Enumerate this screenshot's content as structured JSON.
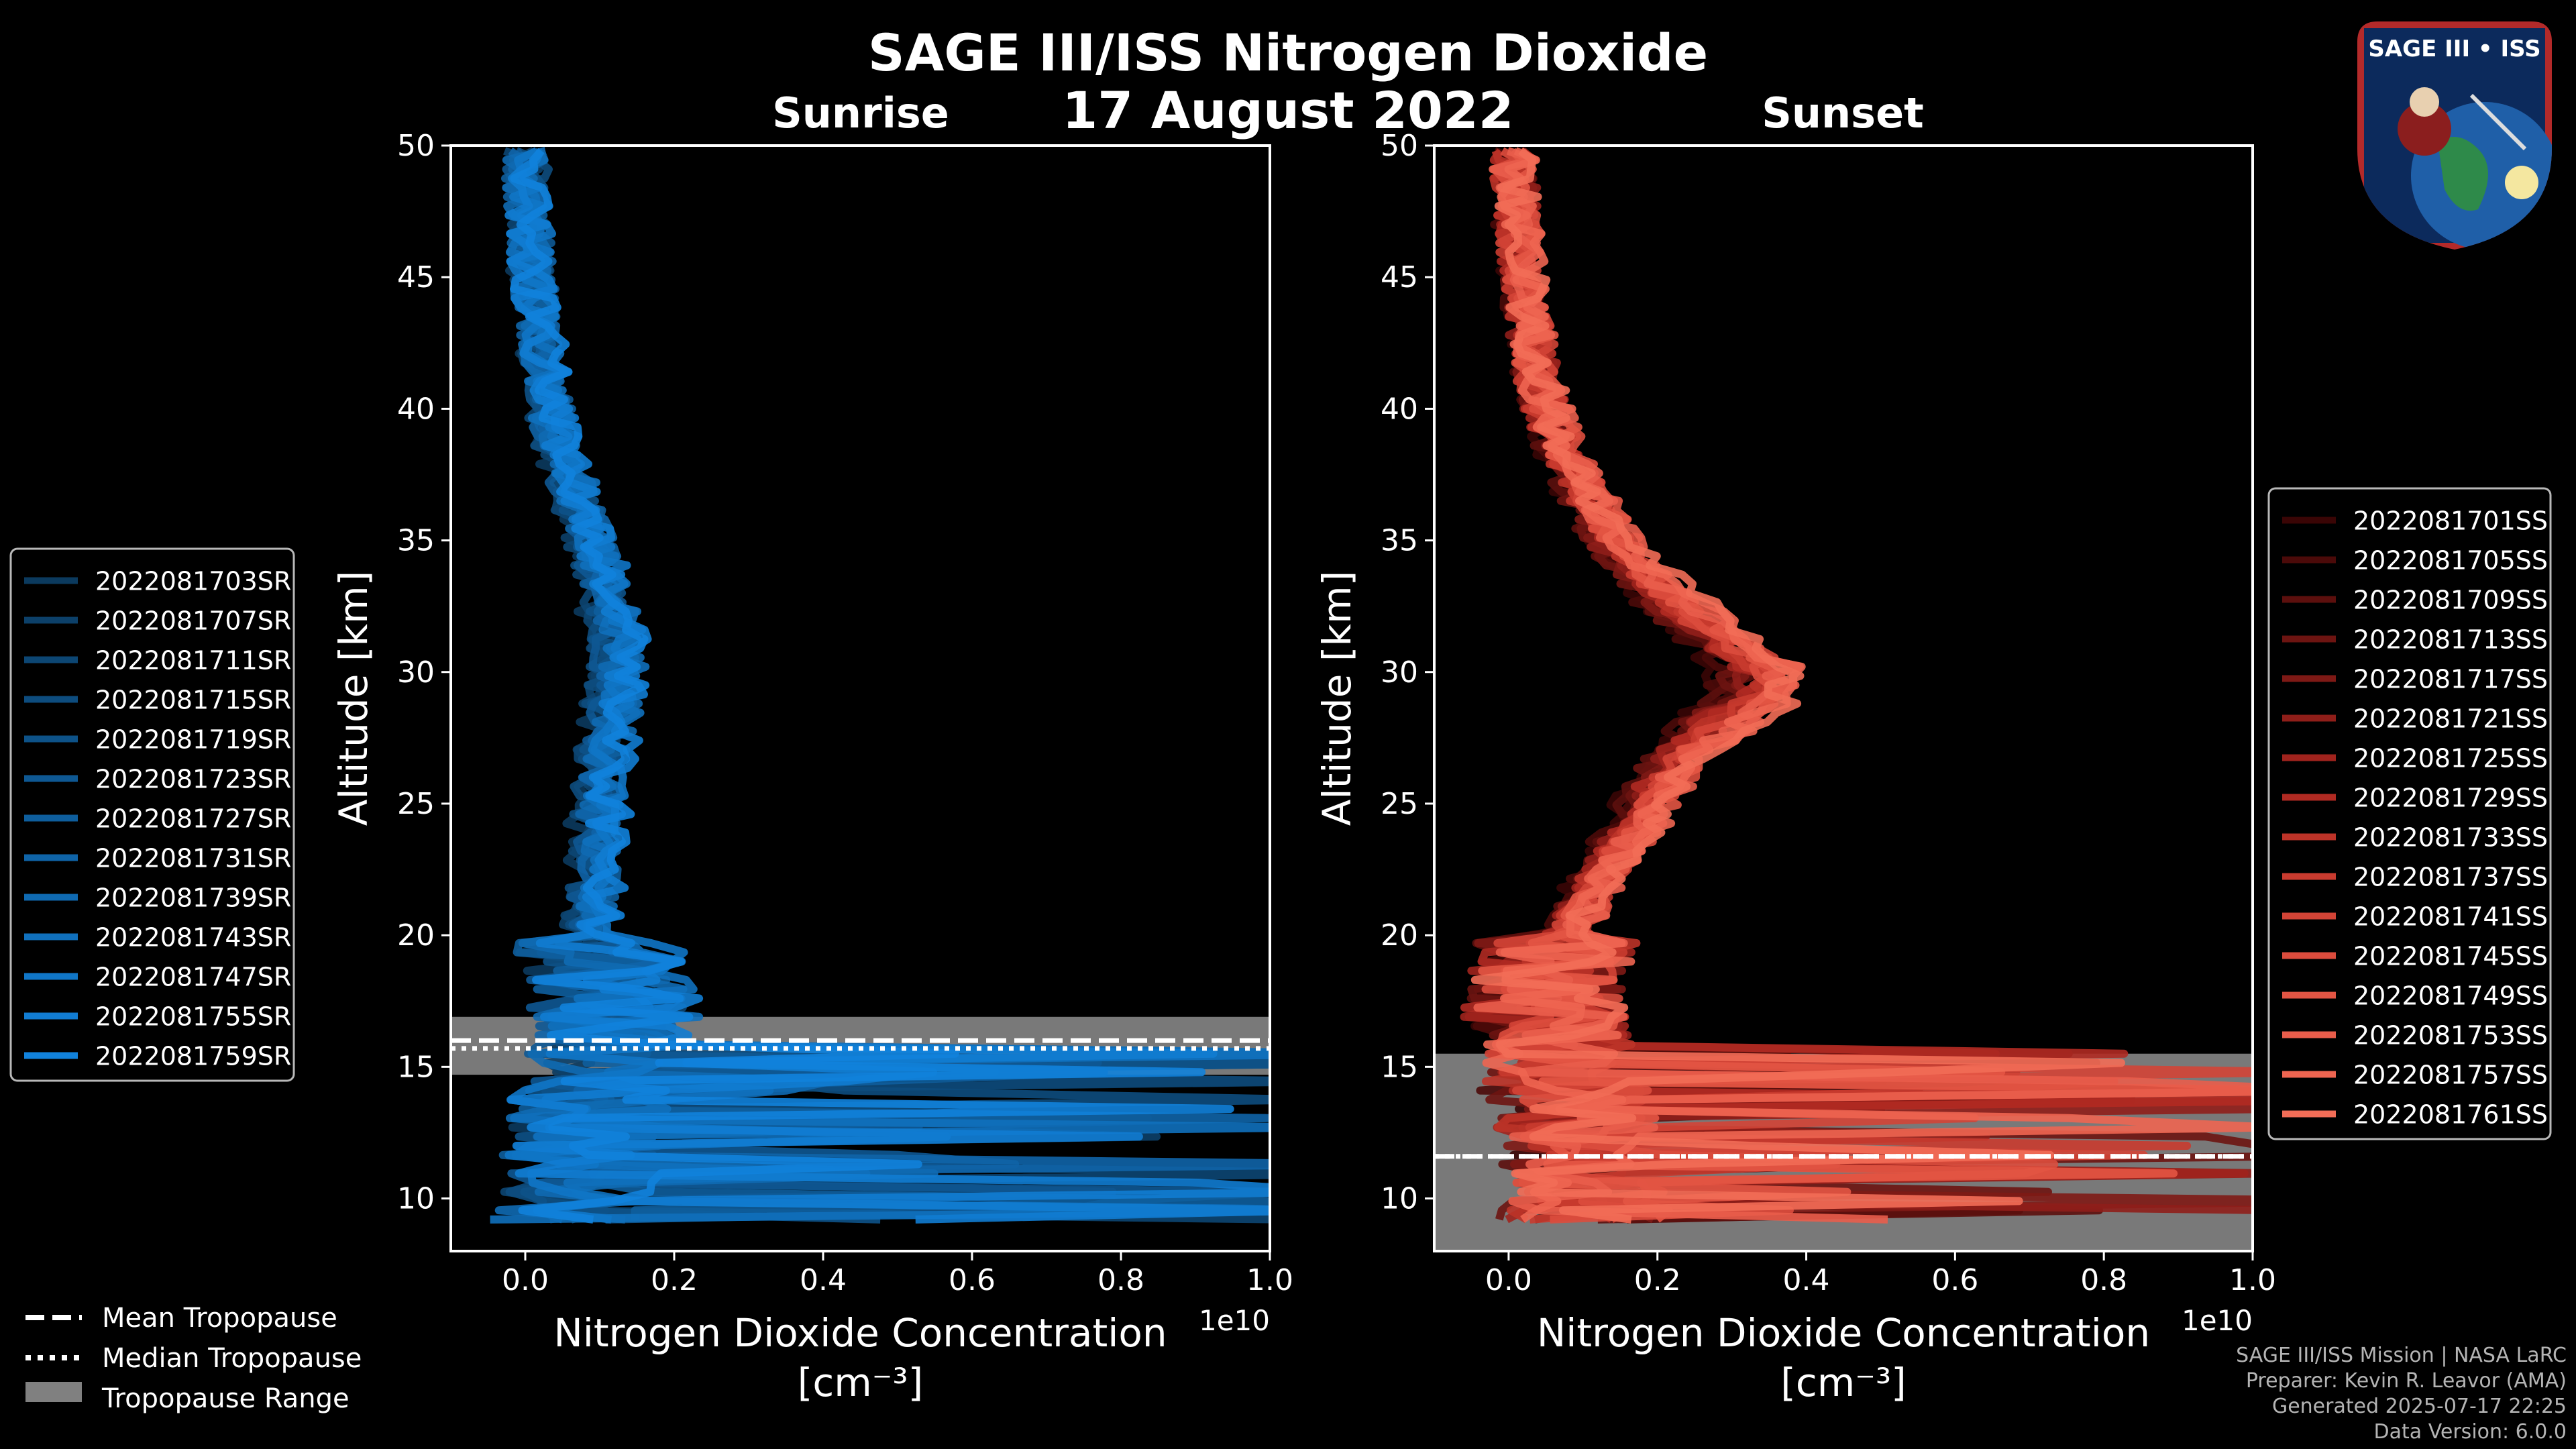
{
  "title": "SAGE III/ISS Nitrogen Dioxide",
  "subtitle_date": "17 August 2022",
  "logo": {
    "text": "SAGE III • ISS"
  },
  "footer": [
    "SAGE III/ISS Mission | NASA LaRC",
    "Preparer: Kevin R. Leavor (AMA)",
    "Generated 2025-07-17 22:25",
    "Data Version: 6.0.0"
  ],
  "chart_data": [
    {
      "type": "line",
      "panel": "Sunrise",
      "title": "Sunrise",
      "xlabel": "Nitrogen Dioxide Concentration",
      "xlabel_units": "[cm⁻³]",
      "ylabel": "Altitude [km]",
      "offset_text": "1e10",
      "xlim": [
        -0.1,
        1.0
      ],
      "ylim": [
        8,
        50
      ],
      "xticks": [
        "0.0",
        "0.2",
        "0.4",
        "0.6",
        "0.8",
        "1.0"
      ],
      "xtick_values": [
        0.0,
        0.2,
        0.4,
        0.6,
        0.8,
        1.0
      ],
      "yticks": [
        "10",
        "15",
        "20",
        "25",
        "30",
        "35",
        "40",
        "45",
        "50"
      ],
      "ytick_values": [
        10,
        15,
        20,
        25,
        30,
        35,
        40,
        45,
        50
      ],
      "series_names": [
        "2022081703SR",
        "2022081707SR",
        "2022081711SR",
        "2022081715SR",
        "2022081719SR",
        "2022081723SR",
        "2022081727SR",
        "2022081731SR",
        "2022081739SR",
        "2022081743SR",
        "2022081747SR",
        "2022081755SR",
        "2022081759SR"
      ],
      "series_colors": [
        "#0b3a5e",
        "#0c4069",
        "#0c4673",
        "#0d4c7e",
        "#0d5288",
        "#0e5893",
        "#0e5e9d",
        "#0f64a8",
        "#0f6ab2",
        "#1070bd",
        "#1076c7",
        "#117cd2",
        "#1182dc"
      ],
      "mean_profile": {
        "altitude": [
          9,
          10,
          11,
          12,
          13,
          14,
          15,
          16,
          17,
          18,
          19,
          20,
          21,
          22,
          23,
          24,
          25,
          26,
          27,
          28,
          29,
          30,
          31,
          32,
          33,
          34,
          35,
          36,
          37,
          38,
          39,
          40,
          41,
          42,
          43,
          44,
          45,
          46,
          47,
          48,
          49,
          50
        ],
        "value": [
          0.05,
          0.06,
          0.07,
          0.08,
          0.08,
          0.08,
          0.1,
          0.12,
          0.12,
          0.11,
          0.1,
          0.09,
          0.09,
          0.095,
          0.1,
          0.1,
          0.1,
          0.105,
          0.11,
          0.12,
          0.12,
          0.125,
          0.125,
          0.12,
          0.11,
          0.1,
          0.09,
          0.08,
          0.065,
          0.05,
          0.04,
          0.035,
          0.03,
          0.025,
          0.02,
          0.015,
          0.01,
          0.008,
          0.006,
          0.004,
          0.002,
          0.0
        ]
      },
      "tropopause": {
        "mean_km": 16.0,
        "median_km": 15.7,
        "range_km": [
          14.7,
          16.9
        ]
      },
      "legend": {
        "position": "outside-left",
        "entries": [
          "Mean Tropopause",
          "Median Tropopause",
          "Tropopause Range"
        ]
      }
    },
    {
      "type": "line",
      "panel": "Sunset",
      "title": "Sunset",
      "xlabel": "Nitrogen Dioxide Concentration",
      "xlabel_units": "[cm⁻³]",
      "ylabel": "Altitude [km]",
      "offset_text": "1e10",
      "xlim": [
        -0.1,
        1.0
      ],
      "ylim": [
        8,
        50
      ],
      "xticks": [
        "0.0",
        "0.2",
        "0.4",
        "0.6",
        "0.8",
        "1.0"
      ],
      "xtick_values": [
        0.0,
        0.2,
        0.4,
        0.6,
        0.8,
        1.0
      ],
      "yticks": [
        "10",
        "15",
        "20",
        "25",
        "30",
        "35",
        "40",
        "45",
        "50"
      ],
      "ytick_values": [
        10,
        15,
        20,
        25,
        30,
        35,
        40,
        45,
        50
      ],
      "series_names": [
        "2022081701SS",
        "2022081705SS",
        "2022081709SS",
        "2022081713SS",
        "2022081717SS",
        "2022081721SS",
        "2022081725SS",
        "2022081729SS",
        "2022081733SS",
        "2022081737SS",
        "2022081741SS",
        "2022081745SS",
        "2022081749SS",
        "2022081753SS",
        "2022081757SS",
        "2022081761SS"
      ],
      "series_colors": [
        "#3a0505",
        "#4b0a09",
        "#5c0f0d",
        "#6d1411",
        "#7e1915",
        "#8f1e19",
        "#a0231d",
        "#b02a22",
        "#bd3328",
        "#c93b2f",
        "#d34436",
        "#dc4c3d",
        "#e35544",
        "#e95d4b",
        "#ee6551",
        "#f26d57"
      ],
      "mean_profile": {
        "altitude": [
          9,
          10,
          11,
          12,
          13,
          14,
          15,
          16,
          17,
          18,
          19,
          20,
          21,
          22,
          23,
          24,
          25,
          26,
          27,
          28,
          29,
          30,
          31,
          32,
          33,
          34,
          35,
          36,
          37,
          38,
          39,
          40,
          41,
          42,
          43,
          44,
          45,
          46,
          47,
          48,
          49,
          50
        ],
        "value": [
          0.1,
          0.1,
          0.1,
          0.1,
          0.09,
          0.08,
          0.07,
          0.06,
          0.05,
          0.05,
          0.06,
          0.08,
          0.1,
          0.12,
          0.14,
          0.17,
          0.19,
          0.21,
          0.24,
          0.28,
          0.33,
          0.34,
          0.3,
          0.25,
          0.21,
          0.17,
          0.14,
          0.12,
          0.1,
          0.08,
          0.065,
          0.05,
          0.04,
          0.035,
          0.03,
          0.025,
          0.02,
          0.015,
          0.012,
          0.01,
          0.008,
          0.006
        ]
      },
      "tropopause": {
        "mean_km": 11.6,
        "median_km": 11.6,
        "range_km": [
          8.0,
          15.5
        ]
      },
      "legend": {
        "position": "outside-right",
        "entries": []
      }
    }
  ]
}
